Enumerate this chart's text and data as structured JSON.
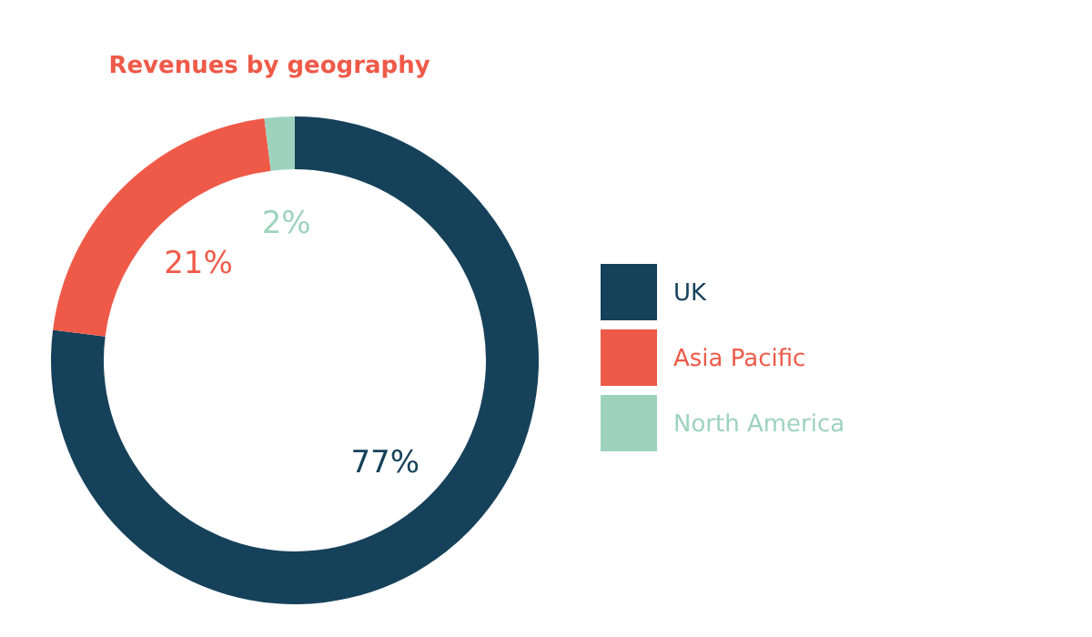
{
  "chart_data": {
    "type": "donut",
    "title": "Revenues by geography",
    "categories": [
      "UK",
      "Asia Pacific",
      "North America"
    ],
    "values": [
      77,
      21,
      2
    ],
    "colors": [
      "#16415a",
      "#ef5a48",
      "#9dd3bc"
    ],
    "value_labels": [
      "77%",
      "21%",
      "2%"
    ],
    "legend": "right"
  }
}
